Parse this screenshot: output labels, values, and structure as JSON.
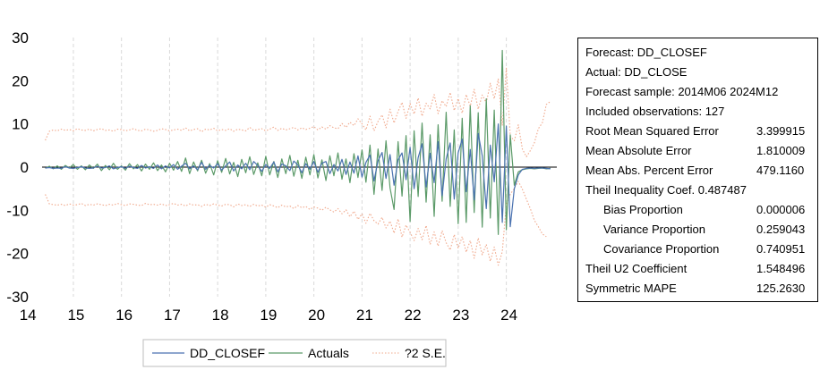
{
  "chart_data": {
    "type": "line",
    "x_ticks": [
      "14",
      "15",
      "16",
      "17",
      "18",
      "19",
      "20",
      "21",
      "22",
      "23",
      "24"
    ],
    "y_ticks": [
      "30",
      "20",
      "10",
      "0",
      "-10",
      "-20",
      "-30"
    ],
    "ylim": [
      -30,
      30
    ],
    "xlim": [
      2014.35,
      2025.05
    ],
    "legend_position": "bottom-center",
    "grid": "vertical dashed",
    "x": [
      2014.417,
      2014.5,
      2014.583,
      2014.667,
      2014.75,
      2014.833,
      2014.917,
      2015.0,
      2015.083,
      2015.167,
      2015.25,
      2015.333,
      2015.417,
      2015.5,
      2015.583,
      2015.667,
      2015.75,
      2015.833,
      2015.917,
      2016.0,
      2016.083,
      2016.167,
      2016.25,
      2016.333,
      2016.417,
      2016.5,
      2016.583,
      2016.667,
      2016.75,
      2016.833,
      2016.917,
      2017.0,
      2017.083,
      2017.167,
      2017.25,
      2017.333,
      2017.417,
      2017.5,
      2017.583,
      2017.667,
      2017.75,
      2017.833,
      2017.917,
      2018.0,
      2018.083,
      2018.167,
      2018.25,
      2018.333,
      2018.417,
      2018.5,
      2018.583,
      2018.667,
      2018.75,
      2018.833,
      2018.917,
      2019.0,
      2019.083,
      2019.167,
      2019.25,
      2019.333,
      2019.417,
      2019.5,
      2019.583,
      2019.667,
      2019.75,
      2019.833,
      2019.917,
      2020.0,
      2020.083,
      2020.167,
      2020.25,
      2020.333,
      2020.417,
      2020.5,
      2020.583,
      2020.667,
      2020.75,
      2020.833,
      2020.917,
      2021.0,
      2021.083,
      2021.167,
      2021.25,
      2021.333,
      2021.417,
      2021.5,
      2021.583,
      2021.667,
      2021.75,
      2021.833,
      2021.917,
      2022.0,
      2022.083,
      2022.167,
      2022.25,
      2022.333,
      2022.417,
      2022.5,
      2022.583,
      2022.667,
      2022.75,
      2022.833,
      2022.917,
      2023.0,
      2023.083,
      2023.167,
      2023.25,
      2023.333,
      2023.417,
      2023.5,
      2023.583,
      2023.667,
      2023.75,
      2023.833,
      2023.917,
      2024.0,
      2024.083,
      2024.167,
      2024.25,
      2024.333,
      2024.417,
      2024.5,
      2024.583,
      2024.667,
      2024.75,
      2024.833,
      2024.917
    ],
    "series": [
      {
        "name": "DD_CLOSEF",
        "color": "#4a72b0",
        "dash": "solid",
        "values": [
          -0.2,
          -0.1,
          -0.3,
          -0.2,
          -0.3,
          0.1,
          -0.2,
          -0.3,
          -0.1,
          0.1,
          -0.2,
          -0.3,
          -0.2,
          0.2,
          -0.2,
          -0.1,
          0.3,
          -0.4,
          -0.1,
          0.1,
          -0.3,
          0.2,
          -0.1,
          -0.3,
          0.4,
          -0.2,
          0.1,
          -0.3,
          0.5,
          -0.4,
          0.3,
          -0.2,
          0.6,
          -0.5,
          0.2,
          0.9,
          -0.4,
          0.3,
          -0.6,
          1.1,
          -0.5,
          0.4,
          -0.2,
          0.8,
          -0.7,
          0.3,
          1.2,
          -0.9,
          0.5,
          -0.4,
          0.9,
          -0.6,
          1.3,
          0.4,
          -1.0,
          0.6,
          -0.3,
          1.2,
          -1.1,
          0.7,
          0.3,
          -0.8,
          1.4,
          0.5,
          -1.3,
          0.8,
          -0.5,
          1.3,
          -1.2,
          0.9,
          1.3,
          -1.5,
          0.6,
          -0.9,
          1.8,
          -1.7,
          1.2,
          -1.4,
          2.6,
          -2.3,
          1.1,
          2.8,
          -3.2,
          1.5,
          3.4,
          -2.6,
          2.9,
          -4.2,
          1.7,
          3.3,
          -2.9,
          4.6,
          -5.0,
          2.2,
          5.4,
          -4.6,
          3.2,
          -3.6,
          5.9,
          -6.6,
          1.9,
          5.6,
          -7.4,
          3.3,
          6.5,
          -5.7,
          4.1,
          -7.6,
          7.8,
          2.6,
          -9.6,
          5.1,
          -3.4,
          10.0,
          -12.8,
          9.5,
          -13.8,
          -5.0,
          -1.8,
          -0.5,
          -0.3,
          -0.2,
          -0.3,
          -0.2,
          -0.2,
          -0.3,
          -0.4
        ]
      },
      {
        "name": "Actuals",
        "color": "#5b9a68",
        "dash": "solid",
        "values": [
          -0.3,
          0.2,
          -0.4,
          0.3,
          -0.5,
          0.4,
          -0.2,
          0.6,
          -0.5,
          0.3,
          -0.6,
          0.5,
          -0.3,
          0.7,
          -0.8,
          0.4,
          -0.6,
          0.9,
          -0.5,
          0.3,
          -0.7,
          0.8,
          -0.4,
          0.6,
          -0.9,
          0.7,
          -0.5,
          1.0,
          -0.8,
          0.5,
          -1.1,
          0.9,
          -0.7,
          1.3,
          -1.0,
          2.1,
          -1.5,
          1.2,
          -0.9,
          1.6,
          -1.4,
          0.8,
          -1.8,
          1.5,
          -1.2,
          2.0,
          -1.6,
          1.1,
          -2.2,
          1.8,
          -1.3,
          2.4,
          -1.7,
          1.0,
          -2.0,
          2.5,
          -1.8,
          1.3,
          -2.4,
          1.9,
          -1.5,
          2.7,
          -2.1,
          1.6,
          -2.6,
          2.3,
          -1.8,
          2.9,
          -2.5,
          1.7,
          -3.1,
          2.6,
          -2.0,
          3.3,
          -2.8,
          1.9,
          -3.6,
          3.1,
          -2.4,
          4.0,
          -3.5,
          5.1,
          -6.3,
          4.2,
          -5.4,
          6.1,
          -4.8,
          -9.8,
          5.9,
          -6.7,
          7.3,
          -12.6,
          8.4,
          -6.8,
          10.2,
          -8.1,
          7.5,
          -11.4,
          9.8,
          -7.9,
          12.7,
          -9.1,
          8.6,
          -13.1,
          11.3,
          -12.8,
          14.2,
          -10.5,
          12.6,
          -13.9,
          15.8,
          -11.8,
          13.2,
          -15.6,
          27.0,
          -14.5,
          7.5,
          -4.2,
          -1.1,
          -0.6,
          -0.4,
          -0.3,
          -0.4,
          -0.3,
          -0.2,
          -0.4,
          -0.3
        ]
      },
      {
        "name": "?2 S.E.",
        "color": "#f0a78a",
        "dash": "dotted",
        "values_upper": [
          6.2,
          8.3,
          8.6,
          8.4,
          8.8,
          8.5,
          8.7,
          8.4,
          8.9,
          8.6,
          8.5,
          8.8,
          8.4,
          8.7,
          8.9,
          8.5,
          8.6,
          8.3,
          8.8,
          8.7,
          8.4,
          8.6,
          8.9,
          8.5,
          8.4,
          8.8,
          8.6,
          8.3,
          8.5,
          8.9,
          8.7,
          8.4,
          8.6,
          8.8,
          8.5,
          9.1,
          8.4,
          8.7,
          8.9,
          8.2,
          8.8,
          8.6,
          9.0,
          8.4,
          8.7,
          8.5,
          8.9,
          8.3,
          8.8,
          8.6,
          8.4,
          9.2,
          8.5,
          8.7,
          8.9,
          8.4,
          8.8,
          9.3,
          8.5,
          9.0,
          8.6,
          8.9,
          9.2,
          8.6,
          9.1,
          8.7,
          9.0,
          9.4,
          8.6,
          9.3,
          8.8,
          9.6,
          9.1,
          8.9,
          10.1,
          9.2,
          10.4,
          9.6,
          11.2,
          10.0,
          8.6,
          11.8,
          8.4,
          10.6,
          12.1,
          9.1,
          13.4,
          10.2,
          12.9,
          15.0,
          11.3,
          14.7,
          12.3,
          16.0,
          11.8,
          14.8,
          13.5,
          16.8,
          12.4,
          15.4,
          14.0,
          17.3,
          13.1,
          15.9,
          12.5,
          16.8,
          14.1,
          18.0,
          13.4,
          16.7,
          14.9,
          19.4,
          15.8,
          20.4,
          9.6,
          22.9,
          7.2,
          6.1,
          9.8,
          4.2,
          2.4,
          3.8,
          5.6,
          8.9,
          10.3,
          14.5,
          15.2
        ],
        "values_lower": [
          -6.3,
          -8.5,
          -8.7,
          -8.8,
          -8.6,
          -8.9,
          -8.5,
          -8.8,
          -8.7,
          -8.4,
          -8.9,
          -8.6,
          -8.8,
          -8.5,
          -8.7,
          -8.9,
          -8.6,
          -8.8,
          -8.4,
          -8.7,
          -8.9,
          -8.5,
          -8.6,
          -8.8,
          -8.9,
          -8.4,
          -8.7,
          -8.6,
          -8.8,
          -8.5,
          -8.9,
          -8.7,
          -8.4,
          -8.8,
          -8.6,
          -9.0,
          -8.5,
          -8.8,
          -8.7,
          -9.1,
          -8.6,
          -8.9,
          -8.5,
          -8.8,
          -9.0,
          -8.6,
          -8.7,
          -9.2,
          -8.5,
          -8.9,
          -8.7,
          -9.1,
          -8.6,
          -9.0,
          -8.8,
          -9.3,
          -8.7,
          -9.0,
          -9.4,
          -8.8,
          -9.2,
          -9.0,
          -9.6,
          -8.9,
          -9.4,
          -9.1,
          -9.8,
          -9.2,
          -9.5,
          -10.0,
          -9.3,
          -9.9,
          -10.4,
          -9.6,
          -10.8,
          -9.9,
          -11.5,
          -10.2,
          -12.1,
          -10.8,
          -13.0,
          -10.7,
          -12.4,
          -13.2,
          -11.6,
          -14.1,
          -12.5,
          -15.3,
          -12.0,
          -16.2,
          -13.4,
          -15.1,
          -17.0,
          -14.2,
          -16.8,
          -13.5,
          -17.9,
          -15.0,
          -18.3,
          -14.7,
          -17.5,
          -19.2,
          -15.6,
          -18.8,
          -16.1,
          -19.7,
          -17.0,
          -21.1,
          -16.4,
          -20.3,
          -17.9,
          -21.8,
          -18.5,
          -22.7,
          -19.6,
          -8.6,
          -6.3,
          -4.9,
          -3.3,
          -5.1,
          -7.4,
          -9.6,
          -12.3,
          -13.8,
          -15.5,
          -16.1
        ]
      }
    ]
  },
  "legend": {
    "items": [
      {
        "label": "DD_CLOSEF",
        "color": "#4a72b0",
        "dash": "solid"
      },
      {
        "label": "Actuals",
        "color": "#5b9a68",
        "dash": "solid"
      },
      {
        "label": "?2 S.E.",
        "color": "#f0a78a",
        "dash": "dotted"
      }
    ]
  },
  "stats": {
    "forecast": "Forecast: DD_CLOSEF",
    "actual": "Actual: DD_CLOSE",
    "sample": "Forecast sample: 2014M06 2024M12",
    "observations": "Included observations: 127",
    "rows": [
      {
        "label": "Root Mean Squared Error",
        "value": "3.399915",
        "indent": false
      },
      {
        "label": "Mean Absolute Error",
        "value": "1.810009",
        "indent": false
      },
      {
        "label": "Mean Abs. Percent Error",
        "value": "479.1160",
        "indent": false
      }
    ],
    "theil": "Theil Inequality Coef.  0.487487",
    "sub_rows": [
      {
        "label": "Bias Proportion",
        "value": "0.000006"
      },
      {
        "label": "Variance Proportion",
        "value": "0.259043"
      },
      {
        "label": "Covariance Proportion",
        "value": "0.740951"
      }
    ],
    "bottom_rows": [
      {
        "label": "Theil U2 Coefficient",
        "value": "1.548496"
      },
      {
        "label": "Symmetric MAPE",
        "value": "125.2630"
      }
    ]
  }
}
